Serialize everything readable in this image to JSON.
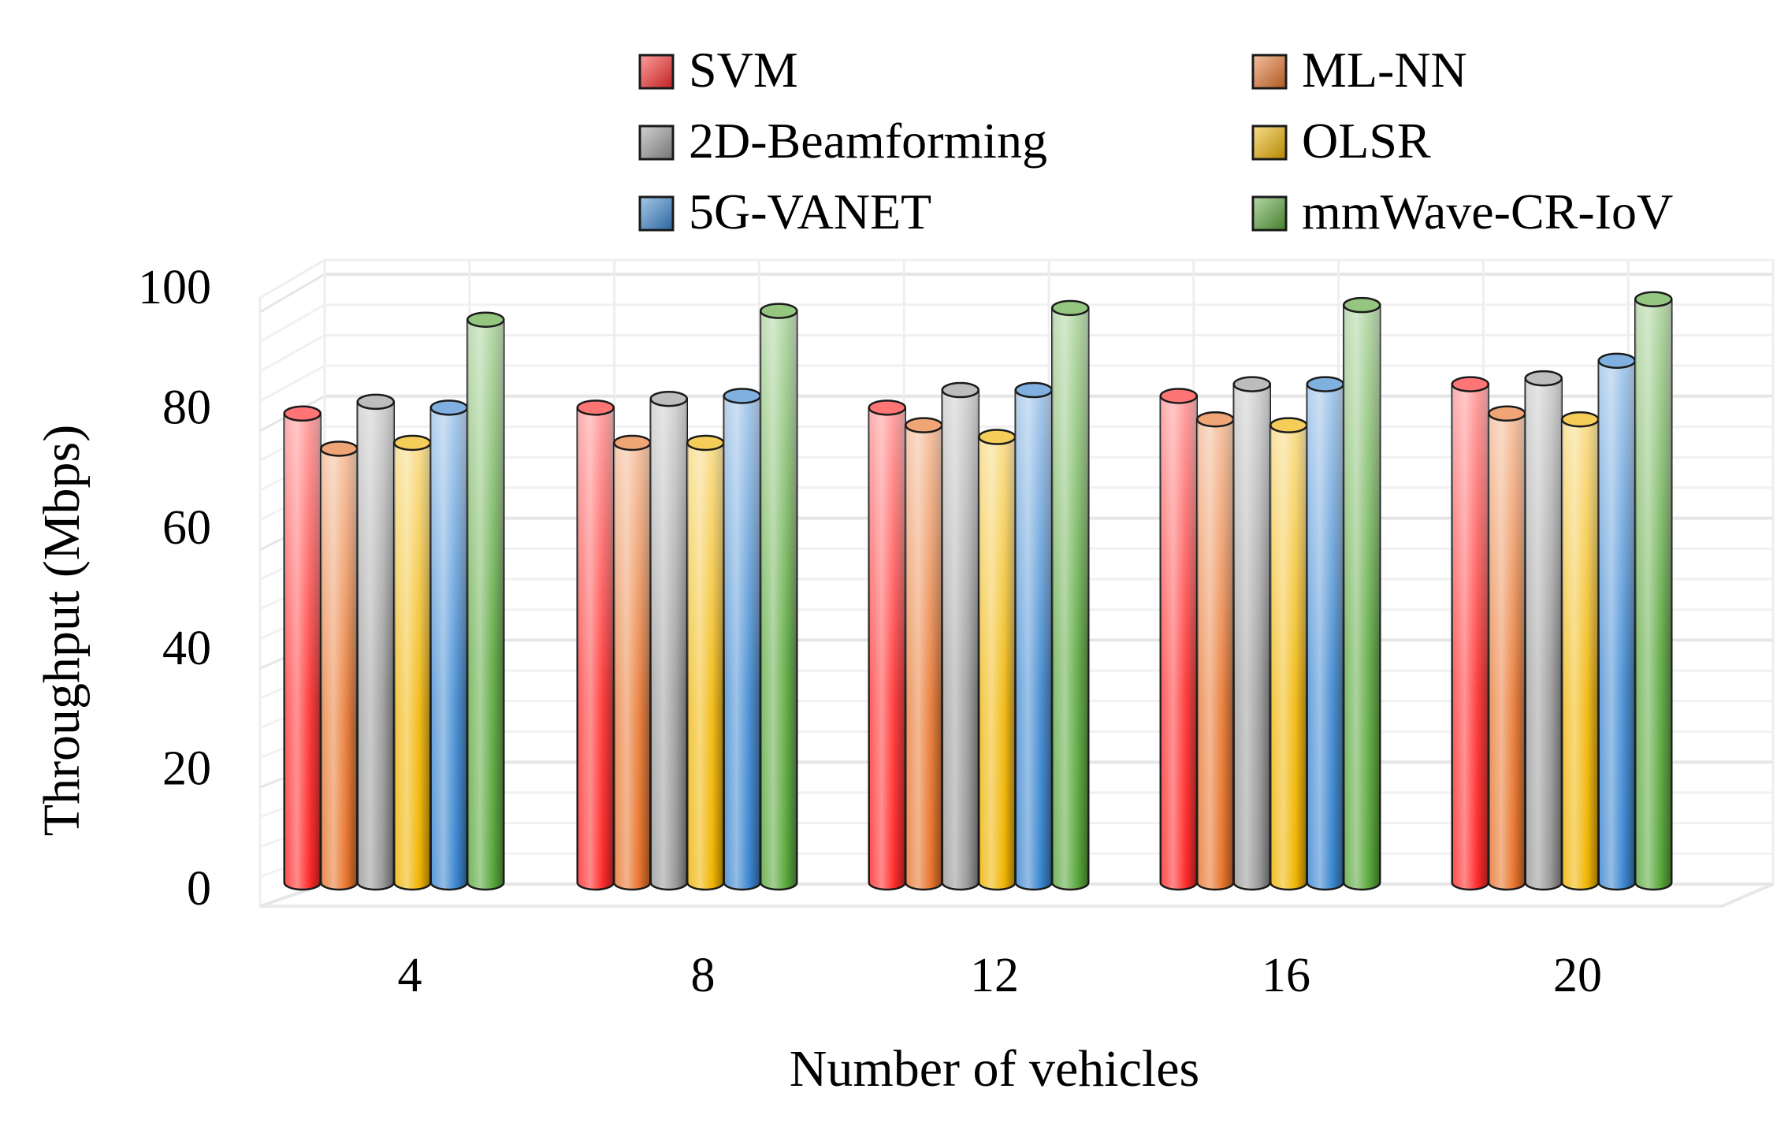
{
  "chart_data": {
    "type": "bar",
    "style": "3d-cylinder",
    "xlabel": "Number of vehicles",
    "ylabel": "Throughput (Mbps)",
    "ylim": [
      0,
      100
    ],
    "yticks": [
      0,
      20,
      40,
      60,
      80,
      100
    ],
    "grid": true,
    "legend_position": "top",
    "categories": [
      "4",
      "8",
      "12",
      "16",
      "20"
    ],
    "series": [
      {
        "name": "SVM",
        "color": "#ff2a2a",
        "values": [
          80,
          81,
          81,
          83,
          85
        ]
      },
      {
        "name": "ML-NN",
        "color": "#e8742c",
        "values": [
          74,
          75,
          78,
          79,
          80
        ]
      },
      {
        "name": "2D-Beamforming",
        "color": "#9a9a9a",
        "values": [
          82,
          82.5,
          84,
          85,
          86
        ]
      },
      {
        "name": "OLSR",
        "color": "#f0b400",
        "values": [
          75,
          75,
          76,
          78,
          79
        ]
      },
      {
        "name": "5G-VANET",
        "color": "#3a86d0",
        "values": [
          81,
          83,
          84,
          85,
          89
        ]
      },
      {
        "name": "mmWave-CR-IoV",
        "color": "#5aa83c",
        "values": [
          96,
          97.5,
          98,
          98.5,
          99.5
        ]
      }
    ]
  }
}
